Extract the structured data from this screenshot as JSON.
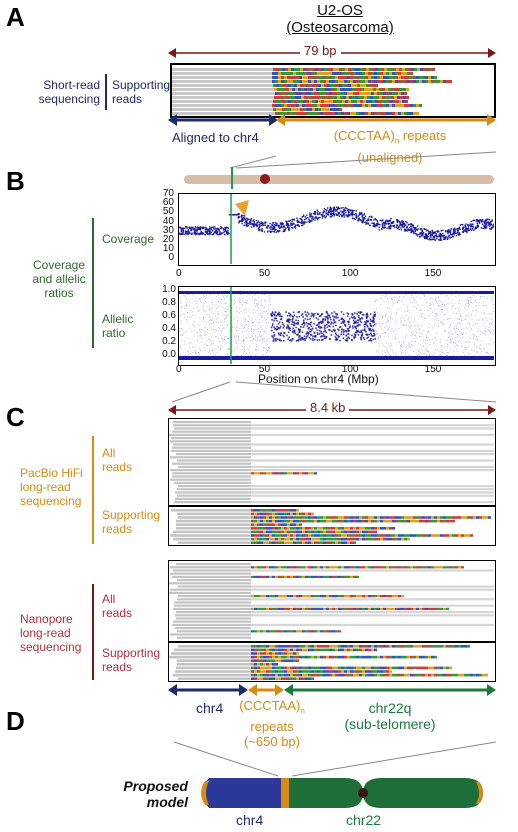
{
  "panelA": {
    "letter": "A",
    "title_line1": "U2-OS",
    "title_line2": "(Osteosarcoma)",
    "span_label": "79 bp",
    "row_label": "Short-read\nsequencing",
    "reads_label": "Supporting\nreads",
    "aligned_label": "Aligned to chr4",
    "repeats_label_pre": "(CCCTAA)",
    "repeats_label_sub": "n",
    "repeats_label_post": " repeats",
    "repeats_label_line2": "(unaligned)"
  },
  "panelB": {
    "letter": "B",
    "group_label": "Coverage\nand allelic\nratios",
    "coverage_label": "Coverage",
    "allelic_label": "Allelic\nratio",
    "coverage_yticks": [
      "70",
      "60",
      "50",
      "40",
      "30",
      "20",
      "10",
      "0"
    ],
    "allelic_yticks": [
      "1.0",
      "0.8",
      "0.6",
      "0.4",
      "0.2",
      "0.0"
    ],
    "xticks": [
      "0",
      "50",
      "100",
      "150"
    ],
    "xlabel": "Position on chr4 (Mbp)"
  },
  "panelC": {
    "letter": "C",
    "span_label": "8.4 kb",
    "pacbio_label": "PacBio HiFi\nlong-read\nsequencing",
    "nanopore_label": "Nanopore\nlong-read\nsequencing",
    "all_reads": "All\nreads",
    "supporting_reads": "Supporting\nreads",
    "chr4_label": "chr4",
    "repeats_pre": "(CCCTAA)",
    "repeats_sub": "n",
    "repeats_line2": "repeats",
    "repeats_line3": "(~650 bp)",
    "chr22_line1": "chr22q",
    "chr22_line2": "(sub-telomere)"
  },
  "panelD": {
    "letter": "D",
    "proposed": "Proposed\nmodel",
    "chr4": "chr4",
    "chr22": "chr22"
  },
  "colors": {
    "navy": "#1f2a6b",
    "orange": "#d98a12",
    "green": "#1d7a3c",
    "maroon": "#7a1616",
    "plot_blue": "#1a1aa0"
  }
}
